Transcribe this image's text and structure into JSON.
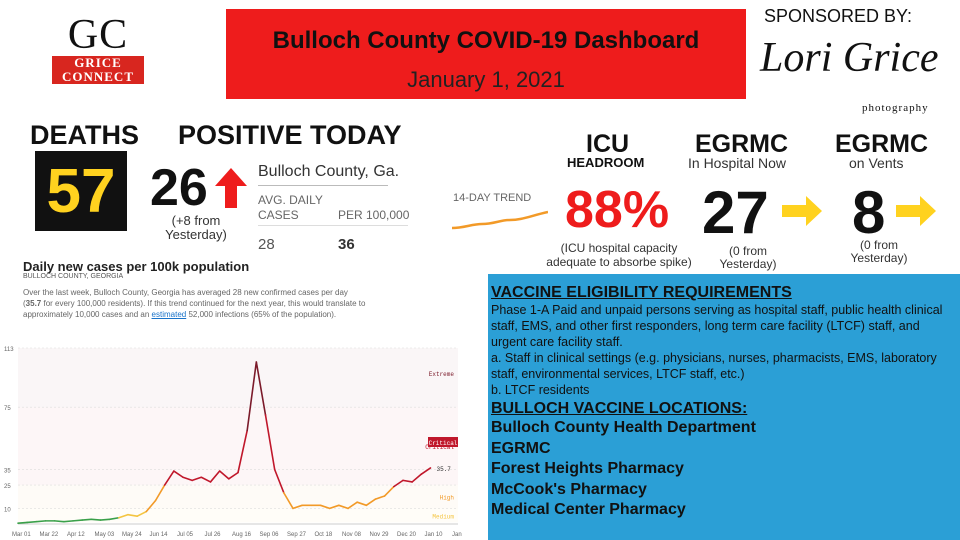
{
  "logo": {
    "initials": "GC",
    "line1": "GRICE",
    "line2": "CONNECT"
  },
  "header": {
    "title": "Bulloch County COVID-19 Dashboard",
    "date": "January 1, 2021"
  },
  "sponsor": {
    "label": "SPONSORED BY:",
    "name": "Lori Grice",
    "sub": "photography"
  },
  "deaths": {
    "label": "DEATHS",
    "value": "57"
  },
  "positive": {
    "label": "POSITIVE TODAY",
    "value": "26",
    "note": "(+8 from Yesterday)"
  },
  "county": {
    "name": "Bulloch County, Ga.",
    "col1_header": "AVG. DAILY CASES",
    "col2_header": "PER 100,000",
    "col1_value": "28",
    "col2_value": "36",
    "trend_label": "14-DAY TREND"
  },
  "icu": {
    "label": "ICU",
    "sub": "HEADROOM",
    "value": "88%",
    "note": "(ICU hospital capacity adequate to absorbe spike)"
  },
  "egrmc_hospital": {
    "label": "EGRMC",
    "sub": "In Hospital Now",
    "value": "27",
    "note": "(0 from Yesterday)"
  },
  "egrmc_vents": {
    "label": "EGRMC",
    "sub": "on Vents",
    "value": "8",
    "note": "(0 from Yesterday)"
  },
  "chart_panel": {
    "title": "Daily new cases per 100k population",
    "subtitle": "BULLOCH COUNTY, GEORGIA",
    "text_pre": "Over the last week, Bulloch County, Georgia has averaged 28 new confirmed cases per day (",
    "text_bold": "35.7",
    "text_mid": " for every 100,000 residents). If this trend continued for the next year, this would translate to approximately 10,000 cases and an ",
    "text_link": "estimated",
    "text_post": " 52,000 infections (65% of the population)."
  },
  "chart_data": {
    "type": "line",
    "title": "Daily new cases per 100k population",
    "x_ticks": [
      "Mar 01",
      "Mar 22",
      "Apr 12",
      "May 03",
      "May 24",
      "Jun 14",
      "Jul 05",
      "Jul 26",
      "Aug 16",
      "Sep 06",
      "Sep 27",
      "Oct 18",
      "Nov 08",
      "Nov 29",
      "Dec 20",
      "Jan 10",
      "Jan"
    ],
    "y_ticks": [
      10,
      25,
      35,
      75,
      113
    ],
    "ylim": [
      0,
      113
    ],
    "zones": [
      {
        "name": "Medium",
        "from": 1,
        "to": 10,
        "color": "#f4c542"
      },
      {
        "name": "High",
        "from": 10,
        "to": 25,
        "color": "#f29a28"
      },
      {
        "name": "Critical",
        "from": 25,
        "to": 75,
        "color": "#c0172b"
      },
      {
        "name": "Extreme",
        "from": 75,
        "to": 113,
        "color": "#7b1a2a"
      }
    ],
    "last_value_label": "35.7",
    "series": [
      {
        "x": [
          0,
          7,
          14,
          21,
          28,
          35,
          42,
          49,
          56,
          63,
          70,
          77,
          84,
          91,
          98,
          105,
          112,
          119,
          126,
          133,
          140,
          147,
          154,
          161,
          168,
          175,
          182,
          189,
          196,
          203,
          210,
          217,
          224,
          231,
          238,
          245,
          252,
          259,
          266,
          273,
          280,
          287,
          294,
          301,
          308,
          315
        ],
        "values": [
          0.5,
          1,
          1.5,
          2,
          2,
          1.5,
          2,
          2.5,
          3,
          2.5,
          3,
          4,
          6,
          5,
          8,
          15,
          25,
          34,
          30,
          28,
          30,
          27,
          34,
          29,
          33,
          60,
          104,
          70,
          35,
          20,
          10,
          12,
          12,
          12,
          10,
          12,
          10,
          14,
          12,
          16,
          18,
          24,
          28,
          27,
          32,
          36
        ]
      }
    ]
  },
  "vaccine": {
    "heading": "VACCINE ELIGIBILITY REQUIREMENTS",
    "p1": "Phase 1-A Paid and unpaid persons serving as hospital staff, public health clinical staff, EMS, and other first responders, long term care facility (LTCF) staff, and urgent care facility staff.",
    "p2": "a. Staff in clinical settings (e.g. physicians, nurses, pharmacists, EMS, laboratory staff, environmental services, LTCF staff, etc.)",
    "p3": "b. LTCF residents",
    "locations_heading": "BULLOCH VACCINE LOCATIONS:",
    "locations": [
      "Bulloch County Health Department",
      "EGRMC",
      "Forest Heights Pharmacy",
      "McCook's Pharmacy",
      "Medical Center Pharmacy"
    ]
  },
  "colors": {
    "title_bg": "#ee1c1c",
    "deaths_value": "#ffd21f",
    "arrow_up": "#ee1c1c",
    "arrow_right": "#ffd21f",
    "vaccine_bg": "#2b9fd6"
  },
  "icons": {
    "positive_trend": "arrow-up-icon",
    "hospital_trend": "arrow-right-icon",
    "vents_trend": "arrow-right-icon"
  }
}
